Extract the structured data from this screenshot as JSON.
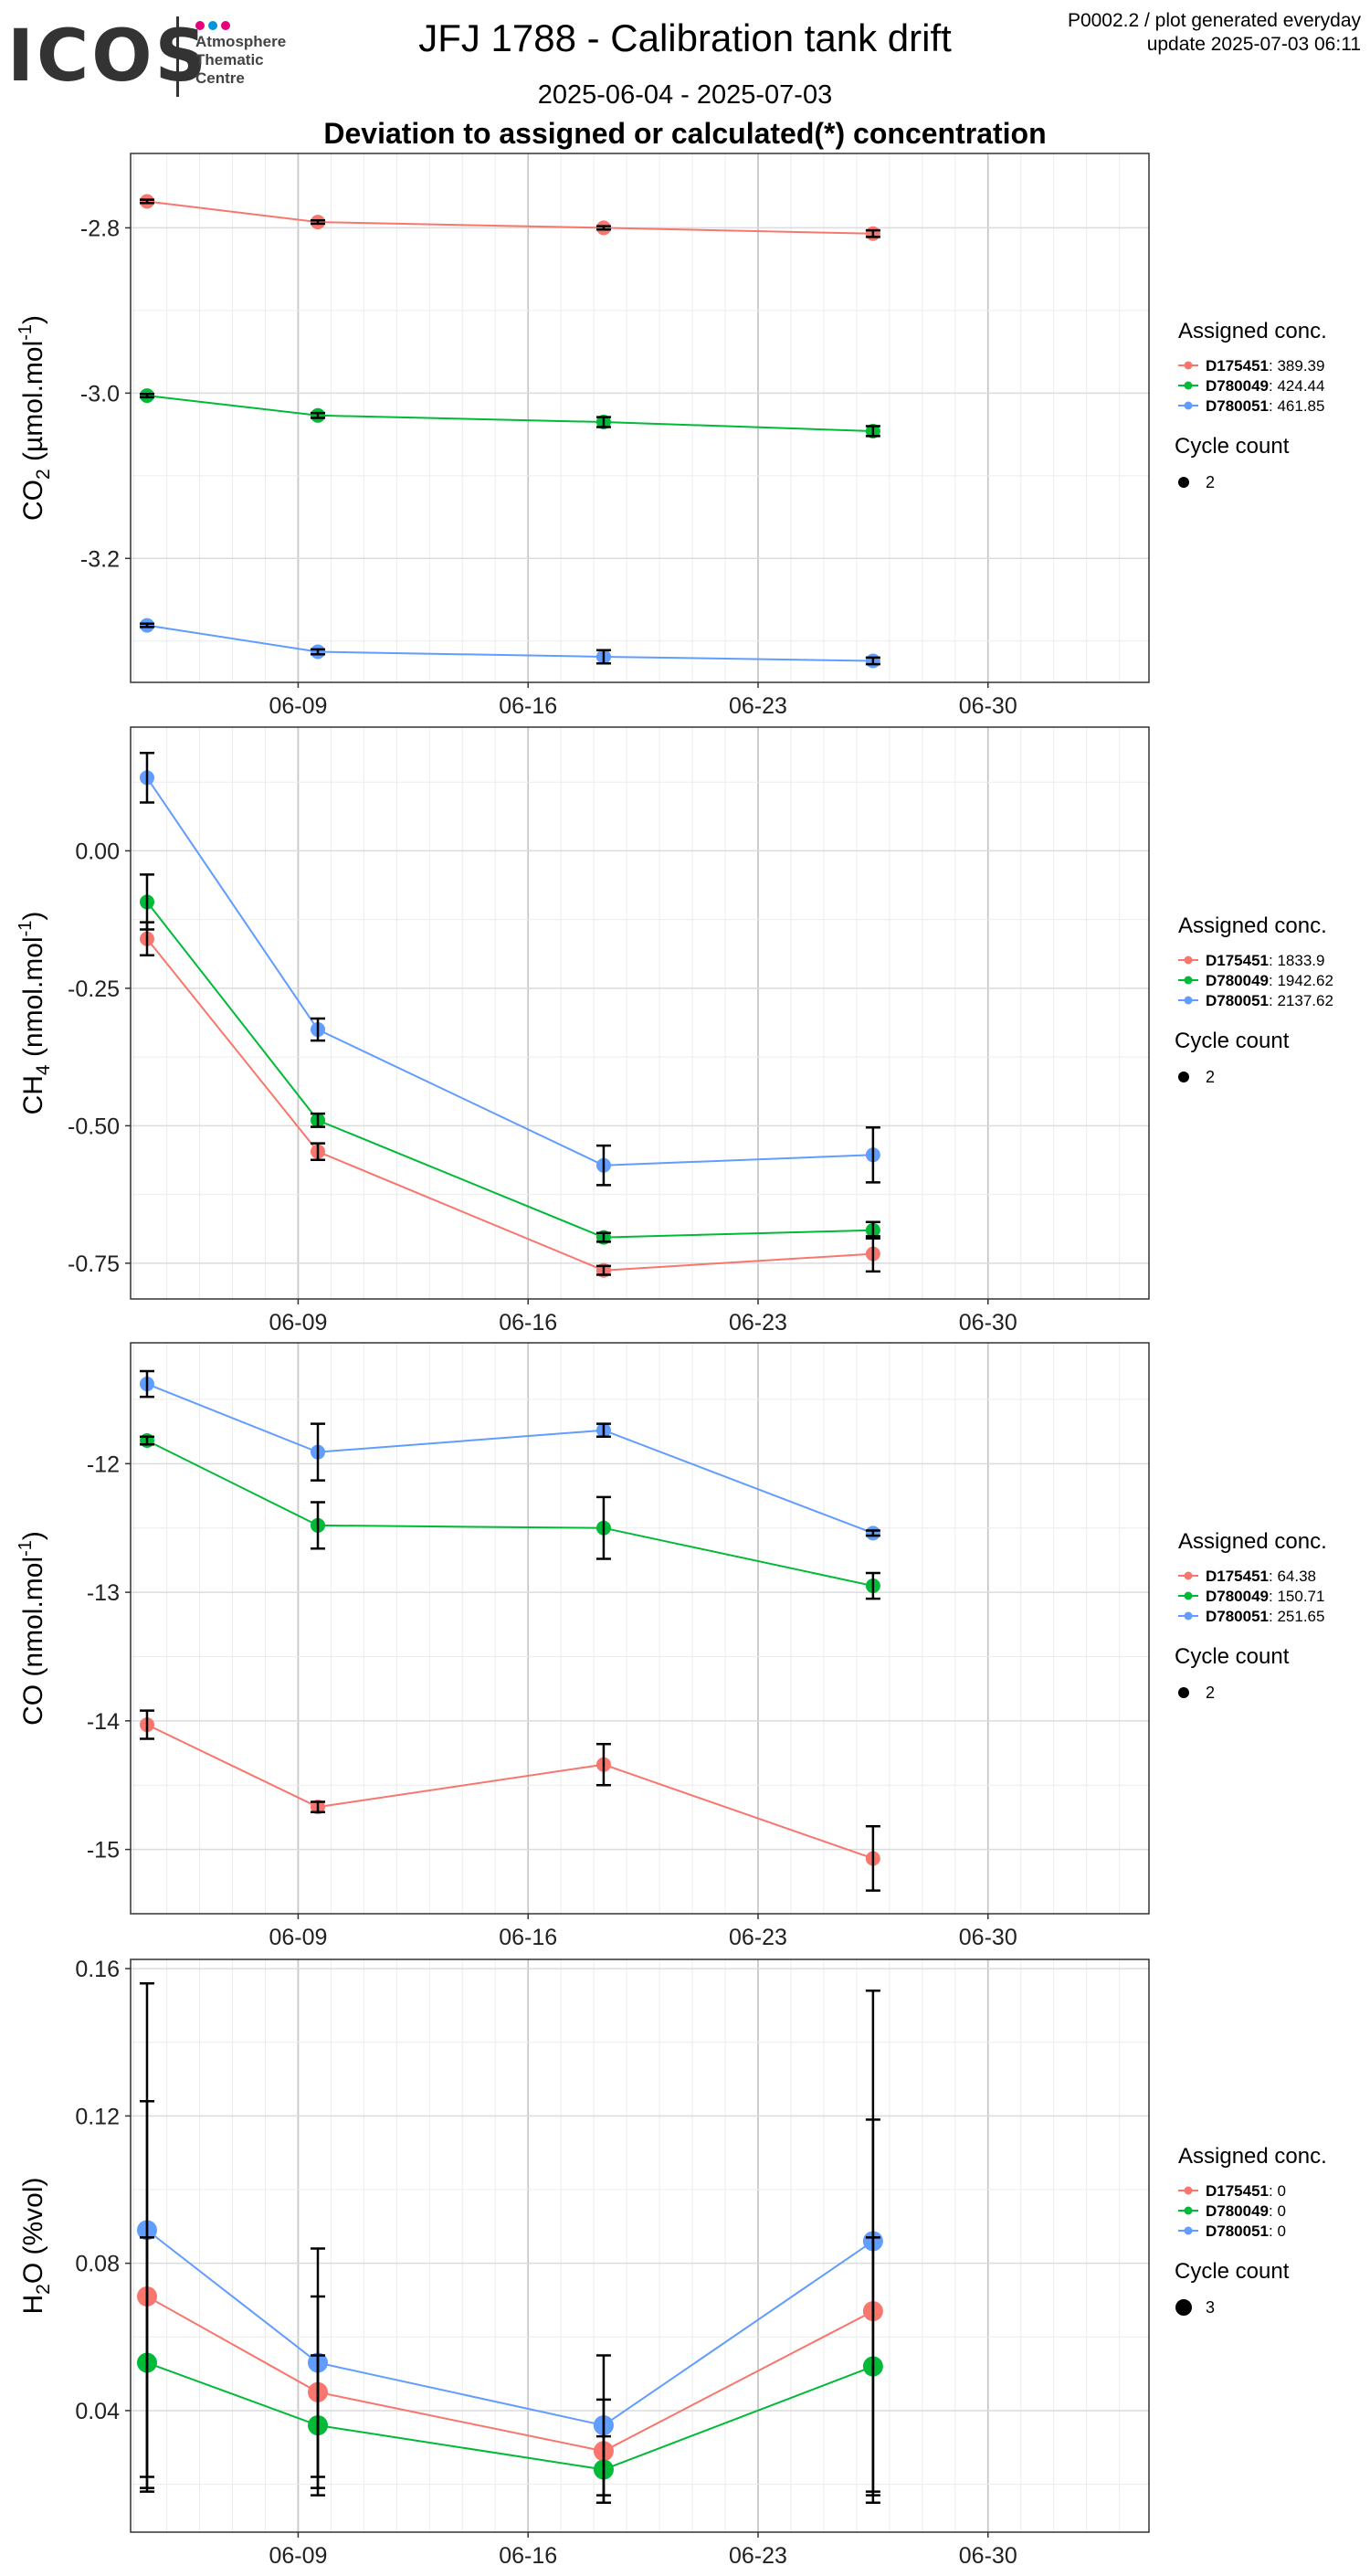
{
  "header": {
    "logo_text": "ICOS",
    "logo_sub": [
      "Atmosphere",
      "Thematic",
      "Centre"
    ],
    "logo_dot_colors": [
      "#e6007e",
      "#0095db",
      "#e6007e"
    ],
    "title": "JFJ 1788 - Calibration tank drift",
    "date_range": "2025-06-04 - 2025-07-03",
    "subtitle": "Deviation to assigned or calculated(*) concentration",
    "info_line1": "P0002.2 / plot generated everyday",
    "info_line2": "update  2025-07-03 06:11"
  },
  "chart_data": [
    {
      "type": "line",
      "ylabel_base": "CO",
      "ylabel_sub": "2",
      "ylabel_unit": " (µmol.mol",
      "ylabel_sup": "-1",
      "ylabel_close": ")",
      "ylim": [
        -3.35,
        -2.71
      ],
      "yticks": [
        -3.2,
        -3.0,
        -2.8
      ],
      "ytick_labels": [
        "-3.2",
        "-3.0",
        "-2.8"
      ],
      "x": [
        4.4,
        9.6,
        18.3,
        26.5
      ],
      "xlim": [
        3.9,
        34.9
      ],
      "xticks": [
        9,
        16,
        23,
        30
      ],
      "xtick_labels": [
        "06-09",
        "06-16",
        "06-23",
        "06-30"
      ],
      "legend_title": "Assigned conc.",
      "cycle_title": "Cycle count",
      "cycle_value": "2",
      "series": [
        {
          "tank": "D175451",
          "assigned": "389.39",
          "color": "#f8766d",
          "values": [
            -2.768,
            -2.793,
            -2.8,
            -2.807
          ],
          "err": [
            0.002,
            0.002,
            0.002,
            0.004
          ]
        },
        {
          "tank": "D780049",
          "assigned": "424.44",
          "color": "#00ba38",
          "values": [
            -3.003,
            -3.027,
            -3.035,
            -3.046
          ],
          "err": [
            0.002,
            0.003,
            0.006,
            0.006
          ]
        },
        {
          "tank": "D780051",
          "assigned": "461.85",
          "color": "#619cff",
          "values": [
            -3.281,
            -3.313,
            -3.319,
            -3.324
          ],
          "err": [
            0.002,
            0.003,
            0.008,
            0.004
          ]
        }
      ]
    },
    {
      "type": "line",
      "ylabel_base": "CH",
      "ylabel_sub": "4",
      "ylabel_unit": " (nmol.mol",
      "ylabel_sup": "-1",
      "ylabel_close": ")",
      "ylim": [
        -0.815,
        0.225
      ],
      "yticks": [
        -0.75,
        -0.5,
        -0.25,
        0.0
      ],
      "ytick_labels": [
        "-0.75",
        "-0.50",
        "-0.25",
        "0.00"
      ],
      "x": [
        4.4,
        9.6,
        18.3,
        26.5
      ],
      "xlim": [
        3.9,
        34.9
      ],
      "xticks": [
        9,
        16,
        23,
        30
      ],
      "xtick_labels": [
        "06-09",
        "06-16",
        "06-23",
        "06-30"
      ],
      "legend_title": "Assigned conc.",
      "cycle_title": "Cycle count",
      "cycle_value": "2",
      "series": [
        {
          "tank": "D175451",
          "assigned": "1833.9",
          "color": "#f8766d",
          "values": [
            -0.16,
            -0.547,
            -0.763,
            -0.733
          ],
          "err": [
            0.03,
            0.015,
            0.008,
            0.032
          ]
        },
        {
          "tank": "D780049",
          "assigned": "1942.62",
          "color": "#00ba38",
          "values": [
            -0.093,
            -0.49,
            -0.703,
            -0.69
          ],
          "err": [
            0.05,
            0.012,
            0.008,
            0.015
          ]
        },
        {
          "tank": "D780051",
          "assigned": "2137.62",
          "color": "#619cff",
          "values": [
            0.133,
            -0.325,
            -0.572,
            -0.553
          ],
          "err": [
            0.045,
            0.02,
            0.036,
            0.05
          ]
        }
      ]
    },
    {
      "type": "line",
      "ylabel_base": "CO",
      "ylabel_sub": "",
      "ylabel_unit": " (nmol.mol",
      "ylabel_sup": "-1",
      "ylabel_close": ")",
      "ylim": [
        -15.5,
        -11.06
      ],
      "yticks": [
        -15,
        -14,
        -13,
        -12
      ],
      "ytick_labels": [
        "-15",
        "-14",
        "-13",
        "-12"
      ],
      "x": [
        4.4,
        9.6,
        18.3,
        26.5
      ],
      "xlim": [
        3.9,
        34.9
      ],
      "xticks": [
        9,
        16,
        23,
        30
      ],
      "xtick_labels": [
        "06-09",
        "06-16",
        "06-23",
        "06-30"
      ],
      "legend_title": "Assigned conc.",
      "cycle_title": "Cycle count",
      "cycle_value": "2",
      "series": [
        {
          "tank": "D175451",
          "assigned": "64.38",
          "color": "#f8766d",
          "values": [
            -14.03,
            -14.67,
            -14.34,
            -15.07
          ],
          "err": [
            0.11,
            0.04,
            0.16,
            0.25
          ]
        },
        {
          "tank": "D780049",
          "assigned": "150.71",
          "color": "#00ba38",
          "values": [
            -11.82,
            -12.48,
            -12.5,
            -12.95
          ],
          "err": [
            0.03,
            0.18,
            0.24,
            0.1
          ]
        },
        {
          "tank": "D780051",
          "assigned": "251.65",
          "color": "#619cff",
          "values": [
            -11.38,
            -11.91,
            -11.74,
            -12.54
          ],
          "err": [
            0.1,
            0.22,
            0.05,
            0.02
          ]
        }
      ]
    },
    {
      "type": "line",
      "ylabel_base": "H",
      "ylabel_sub": "2",
      "ylabel_unit": "O (%vol)",
      "ylabel_sup": "",
      "ylabel_close": "",
      "ylim": [
        0.007,
        0.1625
      ],
      "yticks": [
        0.04,
        0.08,
        0.12,
        0.16
      ],
      "ytick_labels": [
        "0.04",
        "0.08",
        "0.12",
        "0.16"
      ],
      "x": [
        4.4,
        9.6,
        18.3,
        26.5
      ],
      "xlim": [
        3.9,
        34.9
      ],
      "xticks": [
        9,
        16,
        23,
        30
      ],
      "xtick_labels": [
        "06-09",
        "06-16",
        "06-23",
        "06-30"
      ],
      "legend_title": "Assigned conc.",
      "cycle_title": "Cycle count",
      "cycle_value": "3",
      "large_points": true,
      "series": [
        {
          "tank": "D175451",
          "assigned": "0",
          "color": "#f8766d",
          "values": [
            0.071,
            0.045,
            0.029,
            0.067
          ],
          "err": [
            0.053,
            0.026,
            0.014,
            0.052
          ]
        },
        {
          "tank": "D780049",
          "assigned": "0",
          "color": "#00ba38",
          "values": [
            0.053,
            0.036,
            0.024,
            0.052
          ],
          "err": [
            0.034,
            0.019,
            0.009,
            0.035
          ]
        },
        {
          "tank": "D780051",
          "assigned": "0",
          "color": "#619cff",
          "values": [
            0.089,
            0.053,
            0.036,
            0.086
          ],
          "err": [
            0.067,
            0.031,
            0.019,
            0.068
          ]
        }
      ]
    }
  ]
}
